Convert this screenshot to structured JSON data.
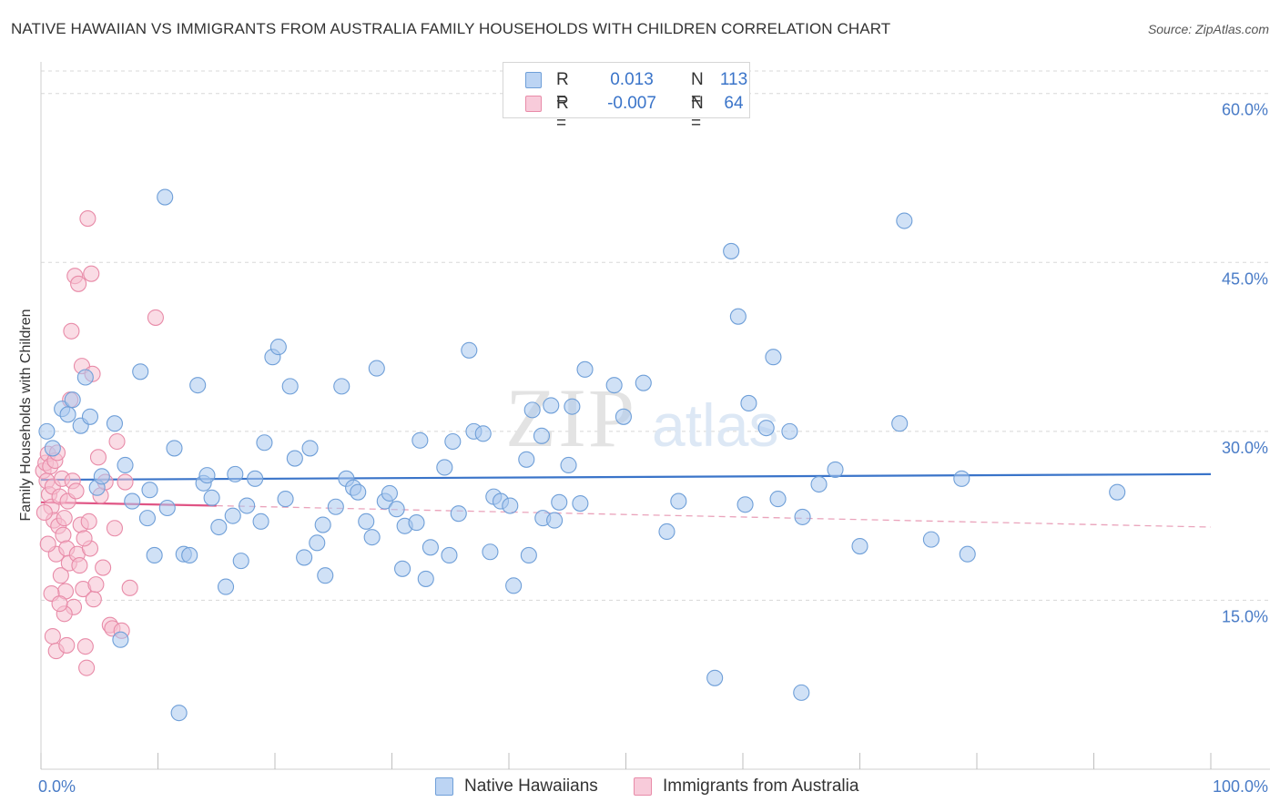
{
  "title": "NATIVE HAWAIIAN VS IMMIGRANTS FROM AUSTRALIA FAMILY HOUSEHOLDS WITH CHILDREN CORRELATION CHART",
  "source": "Source: ZipAtlas.com",
  "watermark": {
    "zip": "ZIP",
    "atlas": "atlas"
  },
  "colors": {
    "blue_fill": "#aac8ef",
    "blue_stroke": "#6f9fd8",
    "blue_line": "#3a74c9",
    "pink_fill": "#f5bfd0",
    "pink_stroke": "#e88ba8",
    "pink_line": "#e05585",
    "axis_label": "#4a7cc7",
    "grid": "#d8d8d8"
  },
  "legend_top": {
    "rows": [
      {
        "r_label": "R =",
        "r_value": "0.013",
        "n_label": "N =",
        "n_value": "113"
      },
      {
        "r_label": "R =",
        "r_value": "-0.007",
        "n_label": "N =",
        "n_value": "64"
      }
    ]
  },
  "legend_bottom": {
    "items": [
      {
        "label": "Native Hawaiians"
      },
      {
        "label": "Immigrants from Australia"
      }
    ]
  },
  "chart_data": {
    "type": "scatter",
    "title": "NATIVE HAWAIIAN VS IMMIGRANTS FROM AUSTRALIA FAMILY HOUSEHOLDS WITH CHILDREN CORRELATION CHART",
    "xlabel": "",
    "ylabel": "Family Households with Children",
    "xlim": [
      0,
      100
    ],
    "ylim": [
      0,
      62
    ],
    "x_tick_labels": [
      {
        "value": 0,
        "label": "0.0%"
      },
      {
        "value": 100,
        "label": "100.0%"
      }
    ],
    "y_ticks": [
      {
        "value": 15,
        "label": "15.0%"
      },
      {
        "value": 30,
        "label": "30.0%"
      },
      {
        "value": 45,
        "label": "45.0%"
      },
      {
        "value": 60,
        "label": "60.0%"
      }
    ],
    "series": [
      {
        "name": "Native Hawaiians",
        "r": 0.013,
        "n": 113,
        "trend": {
          "x0": 0,
          "y0": 25.7,
          "x1": 100,
          "y1": 26.2,
          "style": "solid"
        },
        "points": [
          [
            0.5,
            30.0
          ],
          [
            1.0,
            28.5
          ],
          [
            1.8,
            32.0
          ],
          [
            2.3,
            31.5
          ],
          [
            2.7,
            32.8
          ],
          [
            3.4,
            30.5
          ],
          [
            3.8,
            34.8
          ],
          [
            4.2,
            31.3
          ],
          [
            4.8,
            25.0
          ],
          [
            5.2,
            26.0
          ],
          [
            6.3,
            30.7
          ],
          [
            7.2,
            27.0
          ],
          [
            7.8,
            23.8
          ],
          [
            8.5,
            35.3
          ],
          [
            9.1,
            22.3
          ],
          [
            9.3,
            24.8
          ],
          [
            9.7,
            19.0
          ],
          [
            10.6,
            50.8
          ],
          [
            10.8,
            23.2
          ],
          [
            11.4,
            28.5
          ],
          [
            12.2,
            19.1
          ],
          [
            12.7,
            19.0
          ],
          [
            13.4,
            34.1
          ],
          [
            13.9,
            25.4
          ],
          [
            14.2,
            26.1
          ],
          [
            14.6,
            24.1
          ],
          [
            15.2,
            21.5
          ],
          [
            15.8,
            16.2
          ],
          [
            16.4,
            22.5
          ],
          [
            16.6,
            26.2
          ],
          [
            17.1,
            18.5
          ],
          [
            17.6,
            23.4
          ],
          [
            18.3,
            25.8
          ],
          [
            18.8,
            22.0
          ],
          [
            19.1,
            29.0
          ],
          [
            19.8,
            36.6
          ],
          [
            20.3,
            37.5
          ],
          [
            20.9,
            24.0
          ],
          [
            21.3,
            34.0
          ],
          [
            21.7,
            27.6
          ],
          [
            22.5,
            18.8
          ],
          [
            23.0,
            28.5
          ],
          [
            23.6,
            20.1
          ],
          [
            24.1,
            21.7
          ],
          [
            24.3,
            17.2
          ],
          [
            25.2,
            23.3
          ],
          [
            25.7,
            34.0
          ],
          [
            26.1,
            25.8
          ],
          [
            26.7,
            25.0
          ],
          [
            27.1,
            24.6
          ],
          [
            27.8,
            22.0
          ],
          [
            28.3,
            20.6
          ],
          [
            28.7,
            35.6
          ],
          [
            29.4,
            23.8
          ],
          [
            29.8,
            24.5
          ],
          [
            30.4,
            23.1
          ],
          [
            30.9,
            17.8
          ],
          [
            31.1,
            21.6
          ],
          [
            32.1,
            21.9
          ],
          [
            32.4,
            29.2
          ],
          [
            32.9,
            16.9
          ],
          [
            33.3,
            19.7
          ],
          [
            34.5,
            26.8
          ],
          [
            34.9,
            19.0
          ],
          [
            35.2,
            29.1
          ],
          [
            35.7,
            22.7
          ],
          [
            36.6,
            37.2
          ],
          [
            37.0,
            30.0
          ],
          [
            37.8,
            29.8
          ],
          [
            38.4,
            19.3
          ],
          [
            38.7,
            24.2
          ],
          [
            39.3,
            23.8
          ],
          [
            40.1,
            23.4
          ],
          [
            40.4,
            16.3
          ],
          [
            41.5,
            27.5
          ],
          [
            41.7,
            19.0
          ],
          [
            42.0,
            31.9
          ],
          [
            42.8,
            29.6
          ],
          [
            42.9,
            22.3
          ],
          [
            43.6,
            32.3
          ],
          [
            43.9,
            22.1
          ],
          [
            44.3,
            23.7
          ],
          [
            45.1,
            27.0
          ],
          [
            45.4,
            32.2
          ],
          [
            46.1,
            23.6
          ],
          [
            46.5,
            35.5
          ],
          [
            49.0,
            34.1
          ],
          [
            49.8,
            31.3
          ],
          [
            51.5,
            34.3
          ],
          [
            53.5,
            21.1
          ],
          [
            54.5,
            23.8
          ],
          [
            57.6,
            8.1
          ],
          [
            59.0,
            46.0
          ],
          [
            59.6,
            40.2
          ],
          [
            60.2,
            23.5
          ],
          [
            60.5,
            32.5
          ],
          [
            62.0,
            30.3
          ],
          [
            62.6,
            36.6
          ],
          [
            63.0,
            24.0
          ],
          [
            64.0,
            30.0
          ],
          [
            65.0,
            6.8
          ],
          [
            65.1,
            22.4
          ],
          [
            66.5,
            25.3
          ],
          [
            67.9,
            26.6
          ],
          [
            70.0,
            19.8
          ],
          [
            73.4,
            30.7
          ],
          [
            73.8,
            48.7
          ],
          [
            76.1,
            20.4
          ],
          [
            78.7,
            25.8
          ],
          [
            79.2,
            19.1
          ],
          [
            92.0,
            24.6
          ],
          [
            6.8,
            11.5
          ],
          [
            11.8,
            5.0
          ]
        ]
      },
      {
        "name": "Immigrants from Australia",
        "r": -0.007,
        "n": 64,
        "trend": {
          "x0": 0,
          "y0": 23.7,
          "x1": 15,
          "y1": 23.4,
          "style": "solid",
          "ext_x1": 100,
          "ext_y1": 21.5,
          "ext_style": "dashed"
        },
        "points": [
          [
            0.2,
            26.5
          ],
          [
            0.4,
            27.2
          ],
          [
            0.5,
            25.6
          ],
          [
            0.6,
            28.0
          ],
          [
            0.7,
            24.4
          ],
          [
            0.8,
            26.9
          ],
          [
            0.9,
            23.3
          ],
          [
            1.0,
            25.1
          ],
          [
            1.1,
            22.1
          ],
          [
            1.2,
            27.4
          ],
          [
            1.3,
            19.1
          ],
          [
            1.4,
            28.1
          ],
          [
            1.5,
            21.6
          ],
          [
            1.6,
            24.2
          ],
          [
            1.7,
            17.2
          ],
          [
            1.8,
            25.8
          ],
          [
            1.9,
            20.8
          ],
          [
            2.0,
            22.3
          ],
          [
            2.1,
            15.8
          ],
          [
            2.2,
            19.6
          ],
          [
            2.3,
            23.8
          ],
          [
            2.4,
            18.3
          ],
          [
            2.5,
            32.8
          ],
          [
            2.6,
            38.9
          ],
          [
            2.7,
            25.6
          ],
          [
            2.8,
            14.4
          ],
          [
            2.9,
            43.8
          ],
          [
            3.0,
            24.7
          ],
          [
            3.1,
            19.1
          ],
          [
            3.2,
            43.1
          ],
          [
            3.3,
            18.1
          ],
          [
            3.4,
            21.7
          ],
          [
            3.5,
            35.8
          ],
          [
            3.6,
            16.0
          ],
          [
            3.8,
            10.9
          ],
          [
            3.9,
            9.0
          ],
          [
            4.0,
            48.9
          ],
          [
            4.1,
            22.0
          ],
          [
            4.2,
            19.6
          ],
          [
            4.3,
            44.0
          ],
          [
            4.4,
            35.1
          ],
          [
            4.5,
            15.1
          ],
          [
            4.7,
            16.4
          ],
          [
            4.9,
            27.7
          ],
          [
            5.1,
            24.3
          ],
          [
            5.3,
            17.9
          ],
          [
            5.5,
            25.5
          ],
          [
            5.9,
            12.8
          ],
          [
            6.1,
            12.5
          ],
          [
            6.3,
            21.4
          ],
          [
            6.5,
            29.1
          ],
          [
            6.9,
            12.3
          ],
          [
            7.2,
            25.5
          ],
          [
            7.6,
            16.1
          ],
          [
            9.8,
            40.1
          ],
          [
            1.0,
            11.8
          ],
          [
            1.3,
            10.5
          ],
          [
            2.0,
            13.8
          ],
          [
            0.9,
            15.6
          ],
          [
            1.6,
            14.7
          ],
          [
            2.2,
            11.0
          ],
          [
            0.3,
            22.8
          ],
          [
            0.6,
            20.0
          ],
          [
            3.7,
            20.5
          ]
        ]
      }
    ]
  }
}
